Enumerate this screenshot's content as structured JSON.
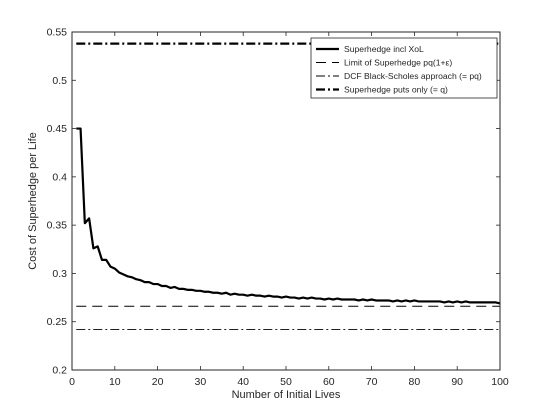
{
  "chart_data": {
    "type": "line",
    "title": "",
    "xlabel": "Number of Initial Lives",
    "ylabel": "Cost of Superhedge per Life",
    "xlim": [
      0,
      100
    ],
    "ylim": [
      0.2,
      0.55
    ],
    "xticks": [
      0,
      10,
      20,
      30,
      40,
      50,
      60,
      70,
      80,
      90,
      100
    ],
    "yticks": [
      0.2,
      0.25,
      0.3,
      0.35,
      0.4,
      0.45,
      0.5,
      0.55
    ],
    "xtick_labels": [
      "0",
      "10",
      "20",
      "30",
      "40",
      "50",
      "60",
      "70",
      "80",
      "90",
      "100"
    ],
    "ytick_labels": [
      "0.2",
      "0.25",
      "0.3",
      "0.35",
      "0.4",
      "0.45",
      "0.5",
      "0.55"
    ],
    "grid": false,
    "legend_position": "top-right",
    "series": [
      {
        "name": "Superhedge incl XoL",
        "style": "solid-thick",
        "x": [
          1,
          2,
          3,
          4,
          5,
          6,
          7,
          8,
          9,
          10,
          11,
          12,
          13,
          14,
          15,
          16,
          17,
          18,
          19,
          20,
          21,
          22,
          23,
          24,
          25,
          26,
          27,
          28,
          29,
          30,
          31,
          32,
          33,
          34,
          35,
          36,
          37,
          38,
          39,
          40,
          41,
          42,
          43,
          44,
          45,
          46,
          47,
          48,
          49,
          50,
          51,
          52,
          53,
          54,
          55,
          56,
          57,
          58,
          59,
          60,
          61,
          62,
          63,
          64,
          65,
          66,
          67,
          68,
          69,
          70,
          71,
          72,
          73,
          74,
          75,
          76,
          77,
          78,
          79,
          80,
          81,
          82,
          83,
          84,
          85,
          86,
          87,
          88,
          89,
          90,
          91,
          92,
          93,
          94,
          95,
          96,
          97,
          98,
          99,
          100
        ],
        "y": [
          0.45,
          0.45,
          0.352,
          0.357,
          0.326,
          0.328,
          0.314,
          0.314,
          0.307,
          0.305,
          0.301,
          0.299,
          0.297,
          0.296,
          0.294,
          0.293,
          0.291,
          0.291,
          0.289,
          0.289,
          0.287,
          0.287,
          0.285,
          0.286,
          0.284,
          0.284,
          0.283,
          0.283,
          0.282,
          0.282,
          0.281,
          0.281,
          0.28,
          0.28,
          0.279,
          0.28,
          0.278,
          0.279,
          0.278,
          0.278,
          0.277,
          0.278,
          0.277,
          0.277,
          0.276,
          0.277,
          0.276,
          0.276,
          0.275,
          0.276,
          0.275,
          0.275,
          0.274,
          0.275,
          0.274,
          0.275,
          0.274,
          0.274,
          0.273,
          0.274,
          0.273,
          0.274,
          0.273,
          0.273,
          0.273,
          0.273,
          0.272,
          0.273,
          0.272,
          0.273,
          0.272,
          0.272,
          0.272,
          0.272,
          0.271,
          0.272,
          0.271,
          0.272,
          0.271,
          0.272,
          0.271,
          0.271,
          0.271,
          0.271,
          0.271,
          0.271,
          0.27,
          0.271,
          0.27,
          0.271,
          0.27,
          0.271,
          0.27,
          0.27,
          0.27,
          0.27,
          0.27,
          0.27,
          0.27,
          0.269
        ]
      },
      {
        "name": "Limit of Superhedge pq(1+ε)",
        "style": "dashed",
        "x": [
          1,
          100
        ],
        "y": [
          0.266,
          0.266
        ]
      },
      {
        "name": "DCF Black-Scholes approach (= pq)",
        "style": "dash-dot",
        "x": [
          1,
          100
        ],
        "y": [
          0.242,
          0.242
        ]
      },
      {
        "name": "Superhedge puts only (= q)",
        "style": "dash-dot-thick",
        "x": [
          1,
          100
        ],
        "y": [
          0.538,
          0.538
        ]
      }
    ]
  }
}
